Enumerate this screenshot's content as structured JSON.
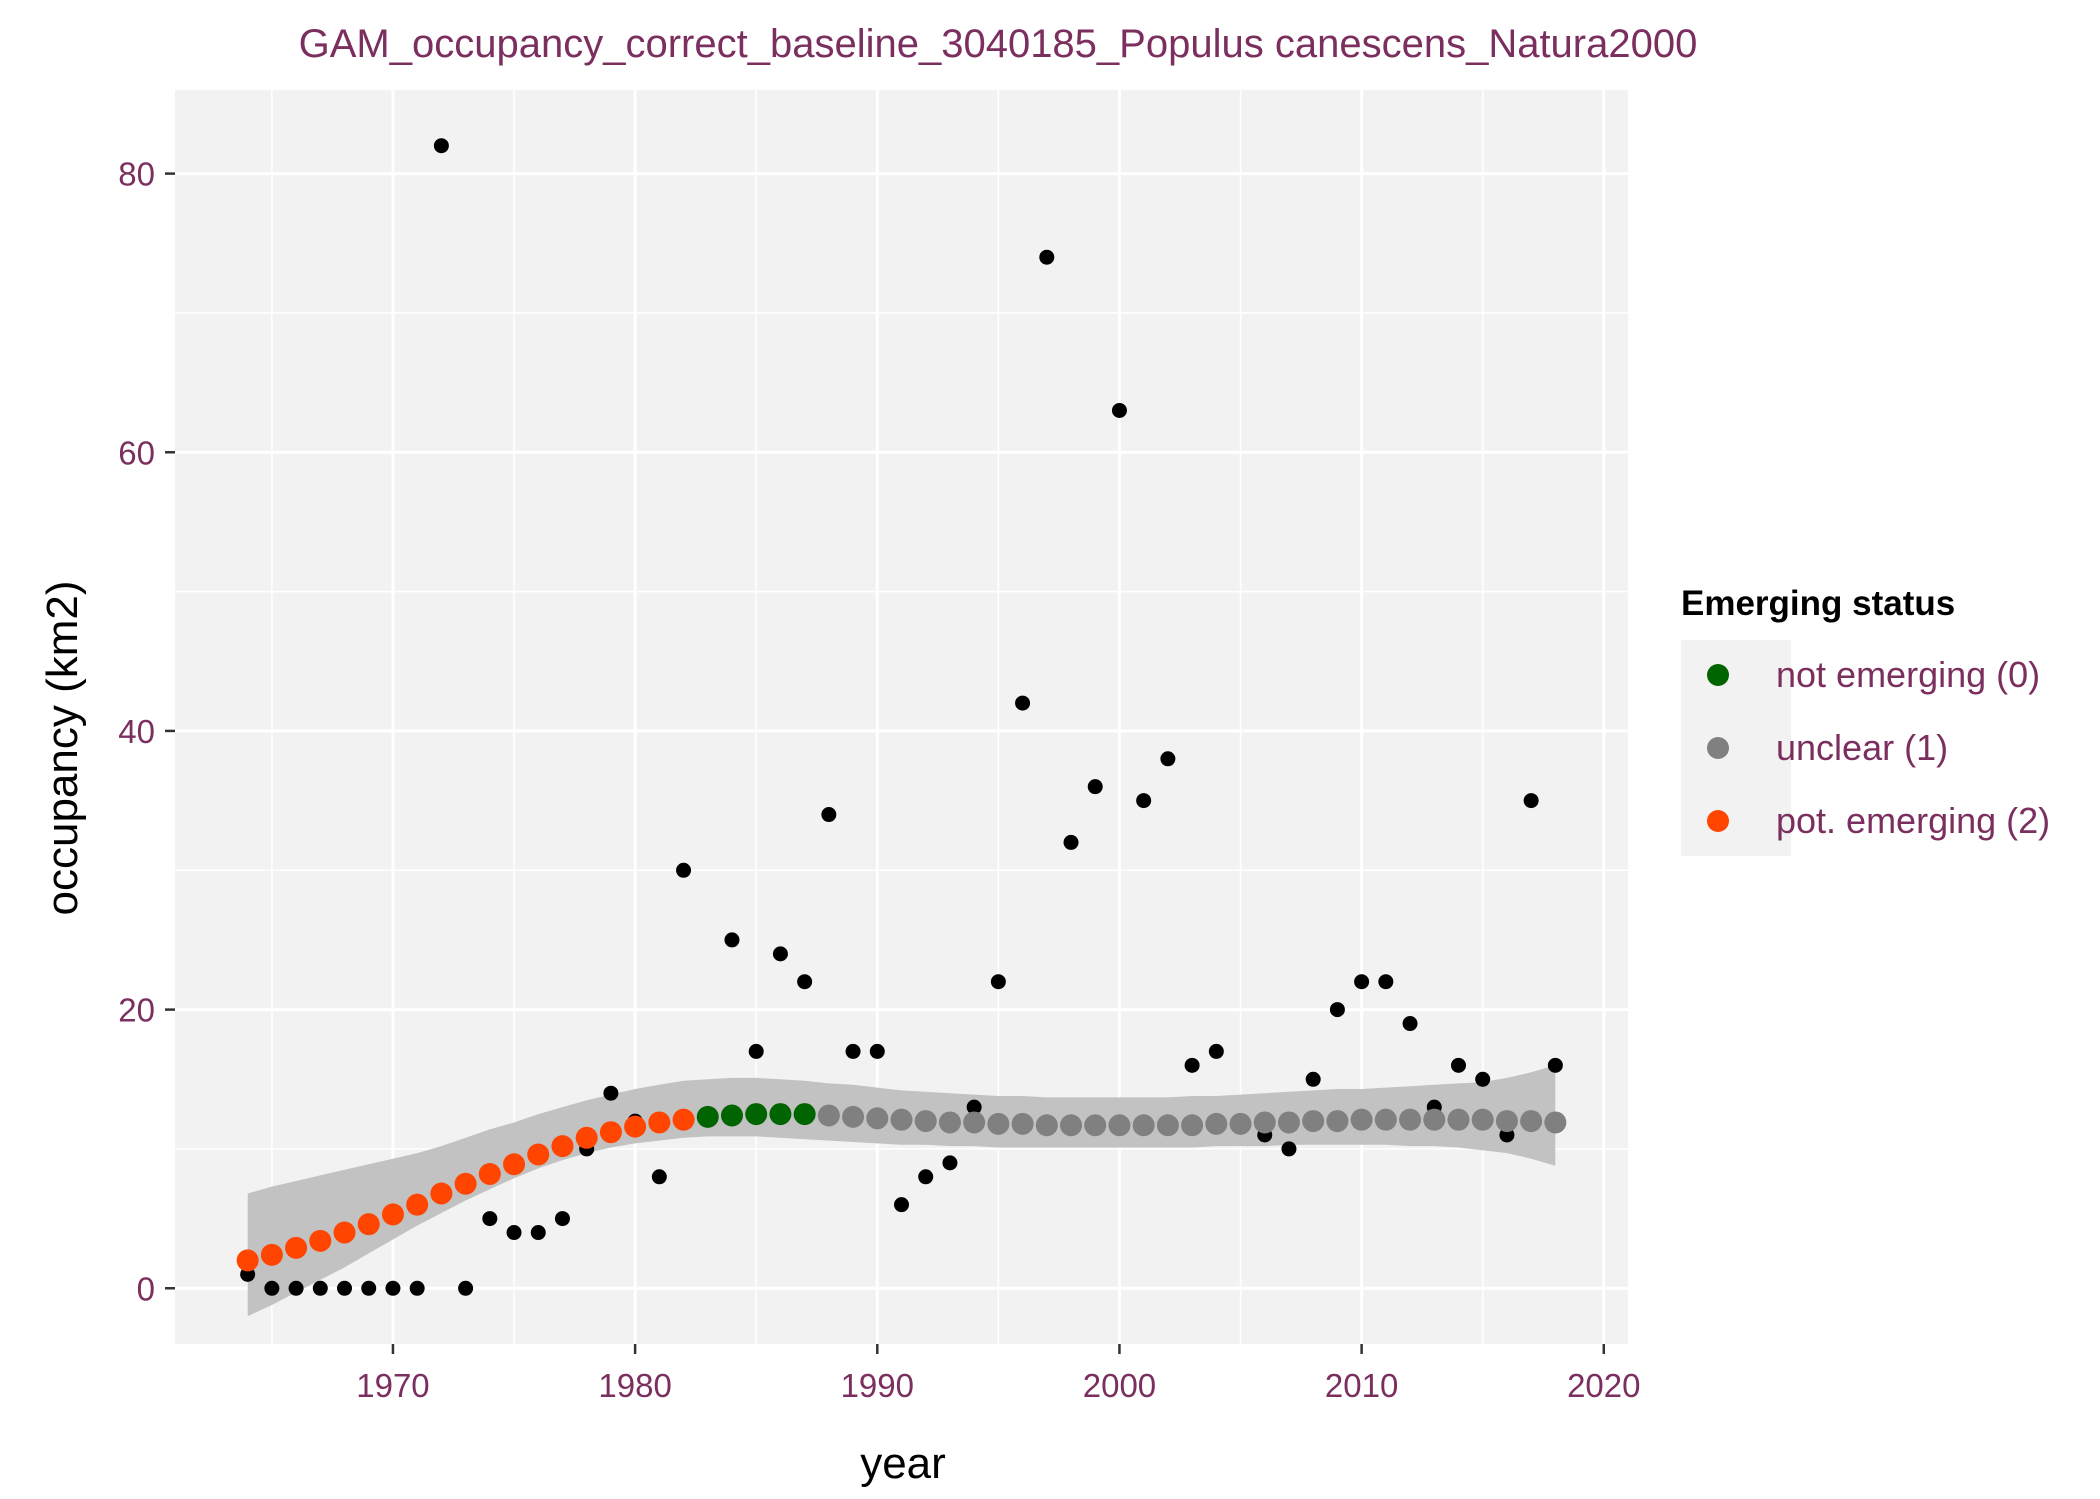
{
  "chart_data": {
    "type": "scatter",
    "title": "GAM_occupancy_correct_baseline_3040185_Populus canescens_Natura2000",
    "xlabel": "year",
    "ylabel": "occupancy (km2)",
    "xlim": [
      1961,
      2021
    ],
    "ylim": [
      -4,
      86
    ],
    "x_ticks": [
      1970,
      1980,
      1990,
      2000,
      2010,
      2020
    ],
    "y_ticks": [
      0,
      20,
      40,
      60,
      80
    ],
    "grid": true,
    "legend": {
      "title": "Emerging status",
      "position": "right",
      "entries": [
        {
          "label": "not emerging (0)",
          "color": "#006400"
        },
        {
          "label": "unclear (1)",
          "color": "#808080"
        },
        {
          "label": "pot. emerging (2)",
          "color": "#FF4500"
        }
      ]
    },
    "observed": {
      "color": "#000000",
      "x": [
        1964,
        1965,
        1966,
        1967,
        1968,
        1969,
        1970,
        1971,
        1972,
        1973,
        1974,
        1975,
        1976,
        1977,
        1978,
        1979,
        1980,
        1981,
        1982,
        1984,
        1985,
        1986,
        1987,
        1988,
        1989,
        1990,
        1991,
        1992,
        1993,
        1994,
        1995,
        1996,
        1997,
        1998,
        1999,
        2000,
        2001,
        2002,
        2003,
        2004,
        2006,
        2007,
        2008,
        2009,
        2010,
        2011,
        2012,
        2013,
        2014,
        2015,
        2016,
        2017,
        2018
      ],
      "y": [
        1,
        0,
        0,
        0,
        0,
        0,
        0,
        0,
        82,
        0,
        5,
        4,
        4,
        5,
        10,
        14,
        12,
        8,
        30,
        25,
        17,
        24,
        22,
        34,
        17,
        17,
        6,
        8,
        9,
        13,
        22,
        42,
        74,
        32,
        36,
        63,
        35,
        38,
        16,
        17,
        11,
        10,
        15,
        20,
        22,
        22,
        19,
        13,
        16,
        15,
        11,
        35,
        16
      ]
    },
    "fitted": {
      "x": [
        1964,
        1965,
        1966,
        1967,
        1968,
        1969,
        1970,
        1971,
        1972,
        1973,
        1974,
        1975,
        1976,
        1977,
        1978,
        1979,
        1980,
        1981,
        1982,
        1983,
        1984,
        1985,
        1986,
        1987,
        1988,
        1989,
        1990,
        1991,
        1992,
        1993,
        1994,
        1995,
        1996,
        1997,
        1998,
        1999,
        2000,
        2001,
        2002,
        2003,
        2004,
        2005,
        2006,
        2007,
        2008,
        2009,
        2010,
        2011,
        2012,
        2013,
        2014,
        2015,
        2016,
        2017,
        2018
      ],
      "y": [
        2.0,
        2.4,
        2.9,
        3.4,
        4.0,
        4.6,
        5.3,
        6.0,
        6.8,
        7.5,
        8.2,
        8.9,
        9.6,
        10.2,
        10.8,
        11.2,
        11.6,
        11.9,
        12.1,
        12.3,
        12.4,
        12.5,
        12.5,
        12.5,
        12.4,
        12.3,
        12.2,
        12.1,
        12.0,
        11.9,
        11.9,
        11.8,
        11.8,
        11.7,
        11.7,
        11.7,
        11.7,
        11.7,
        11.7,
        11.7,
        11.8,
        11.8,
        11.9,
        11.9,
        12.0,
        12.0,
        12.1,
        12.1,
        12.1,
        12.1,
        12.1,
        12.1,
        12.0,
        12.0,
        11.9
      ],
      "status": [
        2,
        2,
        2,
        2,
        2,
        2,
        2,
        2,
        2,
        2,
        2,
        2,
        2,
        2,
        2,
        2,
        2,
        2,
        2,
        0,
        0,
        0,
        0,
        0,
        1,
        1,
        1,
        1,
        1,
        1,
        1,
        1,
        1,
        1,
        1,
        1,
        1,
        1,
        1,
        1,
        1,
        1,
        1,
        1,
        1,
        1,
        1,
        1,
        1,
        1,
        1,
        1,
        1,
        1,
        1
      ],
      "ci_lower": [
        -2.0,
        -1.2,
        -0.3,
        0.6,
        1.5,
        2.5,
        3.5,
        4.5,
        5.4,
        6.3,
        7.1,
        7.9,
        8.6,
        9.2,
        9.7,
        10.1,
        10.4,
        10.6,
        10.8,
        10.9,
        10.9,
        10.9,
        10.8,
        10.7,
        10.6,
        10.5,
        10.4,
        10.3,
        10.3,
        10.2,
        10.2,
        10.1,
        10.1,
        10.1,
        10.1,
        10.1,
        10.1,
        10.1,
        10.1,
        10.1,
        10.2,
        10.2,
        10.2,
        10.3,
        10.3,
        10.3,
        10.3,
        10.3,
        10.2,
        10.2,
        10.1,
        9.9,
        9.7,
        9.3,
        8.8
      ],
      "ci_upper": [
        6.8,
        7.3,
        7.7,
        8.1,
        8.5,
        8.9,
        9.3,
        9.7,
        10.2,
        10.8,
        11.4,
        11.9,
        12.5,
        13.0,
        13.5,
        13.9,
        14.3,
        14.6,
        14.9,
        15.0,
        15.1,
        15.1,
        15.0,
        14.9,
        14.7,
        14.6,
        14.4,
        14.2,
        14.1,
        14.0,
        13.9,
        13.8,
        13.8,
        13.7,
        13.7,
        13.7,
        13.7,
        13.7,
        13.7,
        13.8,
        13.8,
        13.9,
        14.0,
        14.1,
        14.2,
        14.3,
        14.3,
        14.4,
        14.5,
        14.6,
        14.7,
        14.8,
        15.1,
        15.5,
        16.0
      ],
      "band_color": "#C2C2C2"
    }
  }
}
